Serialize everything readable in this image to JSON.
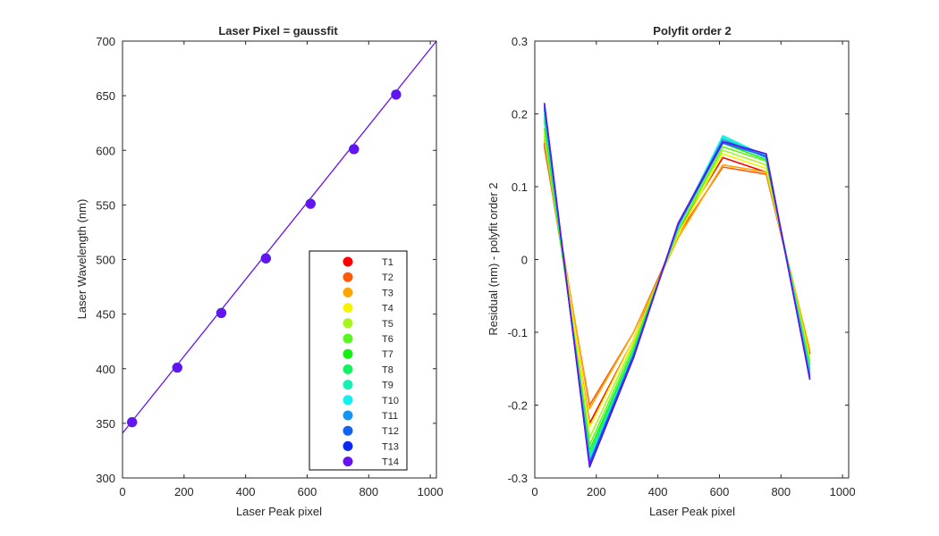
{
  "colors": {
    "T1": "#ff0000",
    "T2": "#ff5a0a",
    "T3": "#ffa500",
    "T4": "#f5f500",
    "T5": "#a8f51e",
    "T6": "#5af51e",
    "T7": "#14f014",
    "T8": "#14f064",
    "T9": "#14f0b4",
    "T10": "#14f0f0",
    "T11": "#1496f0",
    "T12": "#1464f0",
    "T13": "#0a28f0",
    "T14": "#6414f0",
    "axis": "#262626",
    "frame": "#000000"
  },
  "chart_data": [
    {
      "type": "scatter",
      "title": "Laser Pixel = gaussfit",
      "xlabel": "Laser Peak pixel",
      "ylabel": "Laser Wavelength (nm)",
      "xlim": [
        0,
        1020
      ],
      "ylim": [
        300,
        700
      ],
      "xticks": [
        "0",
        "200",
        "400",
        "600",
        "800",
        "1000"
      ],
      "yticks": [
        "300",
        "350",
        "400",
        "450",
        "500",
        "550",
        "600",
        "650",
        "700"
      ],
      "grid": false,
      "legend_position": "bottom-right",
      "fit_line": {
        "x": [
          0,
          1020
        ],
        "y": [
          341,
          700
        ]
      },
      "x": [
        31,
        178,
        321,
        466,
        611,
        752,
        889
      ],
      "y": [
        351,
        401,
        451,
        501,
        551,
        601,
        651
      ],
      "series": [
        {
          "name": "T1"
        },
        {
          "name": "T2"
        },
        {
          "name": "T3"
        },
        {
          "name": "T4"
        },
        {
          "name": "T5"
        },
        {
          "name": "T6"
        },
        {
          "name": "T7"
        },
        {
          "name": "T8"
        },
        {
          "name": "T9"
        },
        {
          "name": "T10"
        },
        {
          "name": "T11"
        },
        {
          "name": "T12"
        },
        {
          "name": "T13"
        },
        {
          "name": "T14"
        }
      ]
    },
    {
      "type": "line",
      "title": "Polyfit order 2",
      "xlabel": "Laser Peak pixel",
      "ylabel": "Residual (nm) - polyfit order 2",
      "xlim": [
        0,
        1020
      ],
      "ylim": [
        -0.3,
        0.3
      ],
      "xticks": [
        "0",
        "200",
        "400",
        "600",
        "800",
        "1000"
      ],
      "yticks": [
        "-0.3",
        "-0.2",
        "-0.1",
        "0",
        "0.1",
        "0.2",
        "0.3"
      ],
      "grid": false,
      "x": [
        31,
        178,
        321,
        466,
        611,
        752,
        894
      ],
      "series": [
        {
          "name": "T1",
          "values": [
            0.16,
            -0.225,
            -0.11,
            0.04,
            0.14,
            0.12,
            -0.13
          ]
        },
        {
          "name": "T2",
          "values": [
            0.155,
            -0.2,
            -0.1,
            0.035,
            0.127,
            0.117,
            -0.128
          ]
        },
        {
          "name": "T3",
          "values": [
            0.165,
            -0.205,
            -0.1,
            0.03,
            0.13,
            0.12,
            -0.125
          ]
        },
        {
          "name": "T4",
          "values": [
            0.175,
            -0.23,
            -0.11,
            0.035,
            0.145,
            0.125,
            -0.135
          ]
        },
        {
          "name": "T5",
          "values": [
            0.17,
            -0.245,
            -0.115,
            0.04,
            0.15,
            0.13,
            -0.14
          ]
        },
        {
          "name": "T6",
          "values": [
            0.18,
            -0.255,
            -0.12,
            0.04,
            0.155,
            0.135,
            -0.145
          ]
        },
        {
          "name": "T7",
          "values": [
            0.19,
            -0.262,
            -0.125,
            0.045,
            0.16,
            0.137,
            -0.15
          ]
        },
        {
          "name": "T8",
          "values": [
            0.195,
            -0.268,
            -0.125,
            0.045,
            0.165,
            0.14,
            -0.152
          ]
        },
        {
          "name": "T9",
          "values": [
            0.2,
            -0.272,
            -0.128,
            0.045,
            0.168,
            0.14,
            -0.155
          ]
        },
        {
          "name": "T10",
          "values": [
            0.205,
            -0.275,
            -0.13,
            0.047,
            0.17,
            0.142,
            -0.158
          ]
        },
        {
          "name": "T11",
          "values": [
            0.208,
            -0.278,
            -0.13,
            0.047,
            0.165,
            0.14,
            -0.16
          ]
        },
        {
          "name": "T12",
          "values": [
            0.21,
            -0.28,
            -0.132,
            0.048,
            0.16,
            0.142,
            -0.162
          ]
        },
        {
          "name": "T13",
          "values": [
            0.215,
            -0.285,
            -0.135,
            0.05,
            0.162,
            0.145,
            -0.165
          ]
        },
        {
          "name": "T14",
          "values": [
            0.215,
            -0.283,
            -0.133,
            0.05,
            0.162,
            0.145,
            -0.165
          ]
        }
      ]
    }
  ]
}
